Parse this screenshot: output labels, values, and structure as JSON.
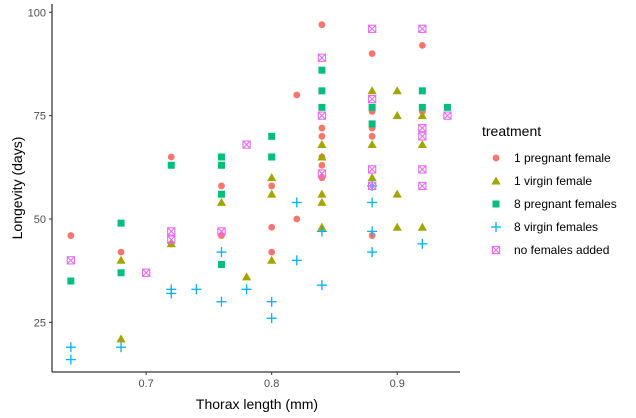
{
  "chart_data": {
    "type": "scatter",
    "xlabel": "Thorax length (mm)",
    "ylabel": "Longevity (days)",
    "xlim": [
      0.625,
      0.95
    ],
    "ylim": [
      13,
      102
    ],
    "x_ticks": [
      0.7,
      0.8,
      0.9
    ],
    "y_ticks": [
      25,
      50,
      75,
      100
    ],
    "x_tick_labels": [
      "0.7",
      "0.8",
      "0.9"
    ],
    "y_tick_labels": [
      "25",
      "50",
      "75",
      "100"
    ],
    "grid": false,
    "legend": {
      "title": "treatment",
      "position": "right"
    },
    "series": [
      {
        "name": "1 pregnant female",
        "color": "#F8766D",
        "shape": "circle",
        "points": [
          [
            0.64,
            46
          ],
          [
            0.68,
            42
          ],
          [
            0.72,
            65
          ],
          [
            0.72,
            44
          ],
          [
            0.76,
            58
          ],
          [
            0.76,
            46
          ],
          [
            0.8,
            58
          ],
          [
            0.8,
            48
          ],
          [
            0.8,
            42
          ],
          [
            0.82,
            80
          ],
          [
            0.82,
            50
          ],
          [
            0.84,
            97
          ],
          [
            0.84,
            72
          ],
          [
            0.84,
            70
          ],
          [
            0.84,
            65
          ],
          [
            0.84,
            63
          ],
          [
            0.84,
            60
          ],
          [
            0.88,
            90
          ],
          [
            0.88,
            76
          ],
          [
            0.88,
            72
          ],
          [
            0.88,
            70
          ],
          [
            0.88,
            46
          ],
          [
            0.92,
            92
          ],
          [
            0.92,
            76
          ]
        ]
      },
      {
        "name": "1 virgin female",
        "color": "#A3A500",
        "shape": "triangle",
        "points": [
          [
            0.68,
            40
          ],
          [
            0.68,
            21
          ],
          [
            0.72,
            44
          ],
          [
            0.76,
            54
          ],
          [
            0.78,
            36
          ],
          [
            0.8,
            60
          ],
          [
            0.8,
            56
          ],
          [
            0.8,
            40
          ],
          [
            0.84,
            68
          ],
          [
            0.84,
            65
          ],
          [
            0.84,
            56
          ],
          [
            0.84,
            54
          ],
          [
            0.84,
            48
          ],
          [
            0.88,
            81
          ],
          [
            0.88,
            68
          ],
          [
            0.88,
            60
          ],
          [
            0.9,
            81
          ],
          [
            0.9,
            75
          ],
          [
            0.9,
            56
          ],
          [
            0.9,
            48
          ],
          [
            0.92,
            75
          ],
          [
            0.92,
            68
          ],
          [
            0.92,
            48
          ]
        ]
      },
      {
        "name": "8 pregnant females",
        "color": "#00BF7D",
        "shape": "square",
        "points": [
          [
            0.64,
            35
          ],
          [
            0.68,
            49
          ],
          [
            0.68,
            37
          ],
          [
            0.72,
            63
          ],
          [
            0.76,
            65
          ],
          [
            0.76,
            63
          ],
          [
            0.76,
            56
          ],
          [
            0.76,
            39
          ],
          [
            0.8,
            70
          ],
          [
            0.8,
            65
          ],
          [
            0.84,
            86
          ],
          [
            0.84,
            81
          ],
          [
            0.84,
            77
          ],
          [
            0.88,
            77
          ],
          [
            0.88,
            73
          ],
          [
            0.92,
            81
          ],
          [
            0.92,
            77
          ],
          [
            0.94,
            77
          ]
        ]
      },
      {
        "name": "8 virgin females",
        "color": "#00B0F6",
        "shape": "plus",
        "points": [
          [
            0.64,
            19
          ],
          [
            0.64,
            16
          ],
          [
            0.68,
            19
          ],
          [
            0.72,
            33
          ],
          [
            0.72,
            32
          ],
          [
            0.74,
            33
          ],
          [
            0.76,
            42
          ],
          [
            0.76,
            30
          ],
          [
            0.78,
            33
          ],
          [
            0.8,
            30
          ],
          [
            0.8,
            26
          ],
          [
            0.82,
            54
          ],
          [
            0.82,
            40
          ],
          [
            0.84,
            47
          ],
          [
            0.84,
            34
          ],
          [
            0.88,
            58
          ],
          [
            0.88,
            54
          ],
          [
            0.88,
            47
          ],
          [
            0.88,
            42
          ],
          [
            0.92,
            44
          ]
        ]
      },
      {
        "name": "no females added",
        "color": "#E76BF3",
        "shape": "square-x",
        "points": [
          [
            0.64,
            40
          ],
          [
            0.7,
            37
          ],
          [
            0.72,
            47
          ],
          [
            0.72,
            45
          ],
          [
            0.76,
            47
          ],
          [
            0.78,
            68
          ],
          [
            0.84,
            89
          ],
          [
            0.84,
            75
          ],
          [
            0.84,
            61
          ],
          [
            0.88,
            96
          ],
          [
            0.88,
            79
          ],
          [
            0.88,
            62
          ],
          [
            0.88,
            58
          ],
          [
            0.92,
            96
          ],
          [
            0.92,
            72
          ],
          [
            0.92,
            70
          ],
          [
            0.92,
            62
          ],
          [
            0.92,
            58
          ],
          [
            0.94,
            75
          ]
        ]
      }
    ]
  }
}
